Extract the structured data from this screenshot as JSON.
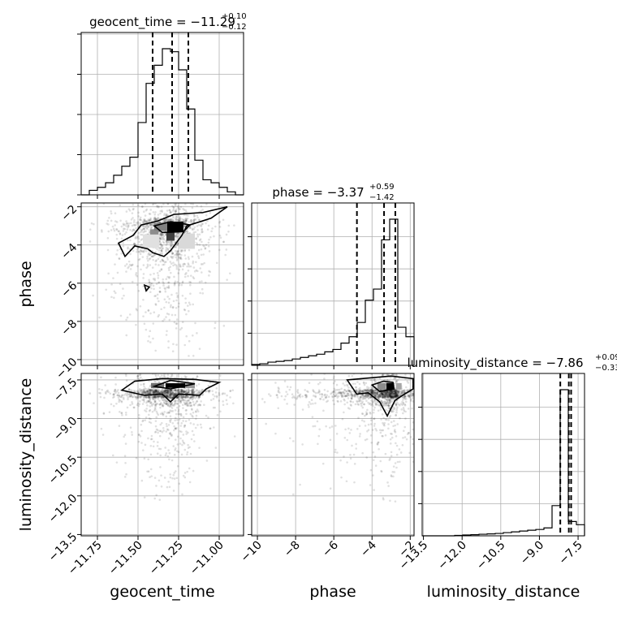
{
  "chart_data": {
    "type": "corner",
    "parameters": [
      "geocent_time",
      "phase",
      "luminosity_distance"
    ],
    "grid": true,
    "panel_titles": {
      "geocent_time": {
        "main": "geocent_time = −11.29",
        "sup": "+0.10",
        "sub": "−0.12"
      },
      "phase": {
        "main": "phase = −3.37",
        "sup": "+0.59",
        "sub": "−1.42"
      },
      "luminosity_distance": {
        "main": "luminosity_distance = −7.86",
        "sup": "+0.09",
        "sub": "−0.33"
      }
    },
    "axis_labels": {
      "geocent_time": "geocent_time",
      "phase": "phase",
      "luminosity_distance": "luminosity_distance"
    },
    "ranges": {
      "geocent_time": [
        -11.85,
        -10.85
      ],
      "phase": [
        -10.3,
        -1.8
      ],
      "luminosity_distance": [
        -13.55,
        -7.25
      ]
    },
    "ticks": {
      "geocent_time": {
        "values": [
          -11.75,
          -11.5,
          -11.25,
          -11.0
        ],
        "labels": [
          "−11.75",
          "−11.50",
          "−11.25",
          "−11.00"
        ]
      },
      "phase": {
        "values": [
          -10,
          -8,
          -6,
          -4,
          -2
        ],
        "labels": [
          "−10",
          "−8",
          "−6",
          "−4",
          "−2"
        ]
      },
      "luminosity_distance": {
        "values": [
          -13.5,
          -12.0,
          -10.5,
          -9.0,
          -7.5
        ],
        "labels": [
          "−13.5",
          "−12.0",
          "−10.5",
          "−9.0",
          "−7.5"
        ]
      }
    },
    "diag_yticks": {
      "geocent_time": [
        0.0,
        0.25,
        0.5,
        0.75,
        1.0
      ],
      "phase": [
        0.2,
        0.4,
        0.6,
        0.8
      ],
      "luminosity_distance": [
        0.2,
        0.4,
        0.6,
        0.8
      ]
    },
    "histograms": {
      "geocent_time": {
        "edges": [
          -11.85,
          -11.8,
          -11.75,
          -11.7,
          -11.65,
          -11.6,
          -11.55,
          -11.5,
          -11.45,
          -11.4,
          -11.35,
          -11.3,
          -11.25,
          -11.2,
          -11.15,
          -11.1,
          -11.05,
          -11.0,
          -10.95,
          -10.9,
          -10.85
        ],
        "counts": [
          0.0,
          0.03,
          0.05,
          0.08,
          0.13,
          0.19,
          0.25,
          0.48,
          0.74,
          0.86,
          0.97,
          0.95,
          0.83,
          0.57,
          0.23,
          0.1,
          0.08,
          0.05,
          0.02,
          0.0
        ],
        "quantiles": [
          -11.41,
          -11.29,
          -11.19
        ]
      },
      "phase": {
        "edges": [
          -10.3,
          -9.875,
          -9.45,
          -9.025,
          -8.6,
          -8.175,
          -7.75,
          -7.325,
          -6.9,
          -6.475,
          -6.05,
          -5.625,
          -5.2,
          -4.775,
          -4.35,
          -3.925,
          -3.5,
          -3.075,
          -2.65,
          -2.225,
          -1.8
        ],
        "counts": [
          0.005,
          0.01,
          0.02,
          0.025,
          0.03,
          0.04,
          0.05,
          0.06,
          0.07,
          0.085,
          0.1,
          0.14,
          0.18,
          0.27,
          0.41,
          0.48,
          0.79,
          0.92,
          0.24,
          0.18
        ],
        "quantiles": [
          -4.79,
          -3.37,
          -2.78
        ]
      },
      "luminosity_distance": {
        "edges": [
          -13.55,
          -13.235,
          -12.92,
          -12.605,
          -12.29,
          -11.975,
          -11.66,
          -11.345,
          -11.03,
          -10.715,
          -10.4,
          -10.085,
          -9.77,
          -9.455,
          -9.14,
          -8.825,
          -8.51,
          -8.195,
          -7.88,
          -7.565,
          -7.25
        ],
        "counts": [
          0.0,
          0.0,
          0.0,
          0.0,
          0.003,
          0.005,
          0.007,
          0.01,
          0.012,
          0.015,
          0.02,
          0.025,
          0.03,
          0.035,
          0.04,
          0.05,
          0.19,
          0.92,
          0.09,
          0.07
        ],
        "quantiles": [
          -8.19,
          -7.86,
          -7.77
        ]
      }
    },
    "contour_panels": [
      {
        "x": "geocent_time",
        "y": "phase",
        "contours": [
          [
            [
              -11.53,
              -3.5
            ],
            [
              -11.48,
              -2.95
            ],
            [
              -11.38,
              -2.75
            ],
            [
              -11.28,
              -2.4
            ],
            [
              -11.1,
              -2.3
            ],
            [
              -10.95,
              -2.0
            ],
            [
              -11.05,
              -2.6
            ],
            [
              -11.2,
              -3.0
            ],
            [
              -11.23,
              -3.5
            ],
            [
              -11.3,
              -4.3
            ],
            [
              -11.34,
              -4.6
            ],
            [
              -11.41,
              -4.4
            ],
            [
              -11.44,
              -4.2
            ],
            [
              -11.52,
              -4.05
            ],
            [
              -11.58,
              -4.6
            ],
            [
              -11.62,
              -3.9
            ],
            [
              -11.53,
              -3.5
            ]
          ],
          [
            [
              -11.4,
              -3.0
            ],
            [
              -11.3,
              -2.78
            ],
            [
              -11.18,
              -2.95
            ],
            [
              -11.22,
              -3.3
            ],
            [
              -11.35,
              -3.35
            ],
            [
              -11.4,
              -3.0
            ]
          ],
          [
            [
              -11.46,
              -6.1
            ],
            [
              -11.45,
              -6.4
            ],
            [
              -11.43,
              -6.2
            ],
            [
              -11.46,
              -6.1
            ]
          ]
        ],
        "density": [
          {
            "x": -11.27,
            "y": -3.05,
            "w": 0.1,
            "h": 0.55,
            "v": 1.0
          },
          {
            "x": -11.3,
            "y": -3.55,
            "w": 0.05,
            "h": 0.45,
            "v": 0.75
          },
          {
            "x": -11.4,
            "y": -3.35,
            "w": 0.05,
            "h": 0.35,
            "v": 0.45
          },
          {
            "x": -11.36,
            "y": -3.05,
            "w": 0.08,
            "h": 0.4,
            "v": 0.5
          },
          {
            "x": -11.2,
            "y": -3.8,
            "w": 0.1,
            "h": 0.8,
            "v": 0.15
          },
          {
            "x": -11.42,
            "y": -3.8,
            "w": 0.1,
            "h": 0.7,
            "v": 0.12
          }
        ]
      },
      {
        "x": "geocent_time",
        "y": "luminosity_distance",
        "contours": [
          [
            [
              -11.6,
              -7.9
            ],
            [
              -11.52,
              -7.55
            ],
            [
              -11.35,
              -7.45
            ],
            [
              -11.15,
              -7.48
            ],
            [
              -11.0,
              -7.6
            ],
            [
              -11.08,
              -7.85
            ],
            [
              -11.12,
              -8.1
            ],
            [
              -11.25,
              -8.05
            ],
            [
              -11.3,
              -8.35
            ],
            [
              -11.35,
              -8.05
            ],
            [
              -11.46,
              -8.1
            ],
            [
              -11.6,
              -7.9
            ]
          ],
          [
            [
              -11.4,
              -7.75
            ],
            [
              -11.3,
              -7.52
            ],
            [
              -11.15,
              -7.65
            ],
            [
              -11.3,
              -7.85
            ],
            [
              -11.4,
              -7.75
            ]
          ]
        ],
        "density": [
          {
            "x": -11.27,
            "y": -7.72,
            "w": 0.12,
            "h": 0.18,
            "v": 1.0
          },
          {
            "x": -11.38,
            "y": -7.72,
            "w": 0.08,
            "h": 0.2,
            "v": 0.55
          },
          {
            "x": -11.18,
            "y": -7.72,
            "w": 0.06,
            "h": 0.2,
            "v": 0.4
          }
        ]
      },
      {
        "x": "phase",
        "y": "luminosity_distance",
        "contours": [
          [
            [
              -5.3,
              -7.5
            ],
            [
              -4.8,
              -8.05
            ],
            [
              -4.2,
              -8.0
            ],
            [
              -3.6,
              -8.35
            ],
            [
              -3.2,
              -8.9
            ],
            [
              -2.8,
              -8.3
            ],
            [
              -2.4,
              -8.1
            ],
            [
              -1.85,
              -7.85
            ],
            [
              -1.85,
              -7.45
            ],
            [
              -3.0,
              -7.35
            ],
            [
              -5.3,
              -7.5
            ]
          ],
          [
            [
              -4.0,
              -7.7
            ],
            [
              -3.4,
              -7.55
            ],
            [
              -2.9,
              -7.6
            ],
            [
              -2.85,
              -7.85
            ],
            [
              -3.6,
              -7.95
            ],
            [
              -4.0,
              -7.7
            ]
          ]
        ],
        "density": [
          {
            "x": -3.05,
            "y": -7.75,
            "w": 0.4,
            "h": 0.25,
            "v": 1.0
          },
          {
            "x": -3.5,
            "y": -7.75,
            "w": 0.45,
            "h": 0.25,
            "v": 0.45
          },
          {
            "x": -2.6,
            "y": -7.75,
            "w": 0.3,
            "h": 0.25,
            "v": 0.35
          }
        ]
      }
    ]
  }
}
